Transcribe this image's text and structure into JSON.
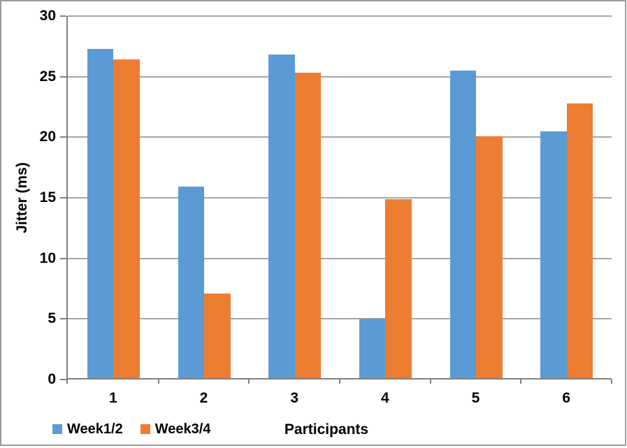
{
  "window": {
    "background": "#ffffff",
    "frame_border_color": "#9b9b9b"
  },
  "chart_data": {
    "type": "bar",
    "title": "",
    "categories": [
      "1",
      "2",
      "3",
      "4",
      "5",
      "6"
    ],
    "series": [
      {
        "name": "Week1/2",
        "color": "#5B9BD5",
        "values": [
          27.3,
          15.9,
          26.8,
          5.0,
          25.5,
          20.5
        ]
      },
      {
        "name": "Week3/4",
        "color": "#ED7D31",
        "values": [
          26.4,
          7.1,
          25.3,
          14.9,
          20.1,
          22.8
        ]
      }
    ],
    "xlabel": "Participants",
    "ylabel": "Jitter (ms)",
    "ylim": [
      0,
      30
    ],
    "yticks": [
      0,
      5,
      10,
      15,
      20,
      25,
      30
    ],
    "grid": true,
    "legend_position": "bottom-left",
    "gridline_color": "#A6A6A6",
    "axis_color": "#7F7F7F",
    "text_color": "#000000"
  }
}
